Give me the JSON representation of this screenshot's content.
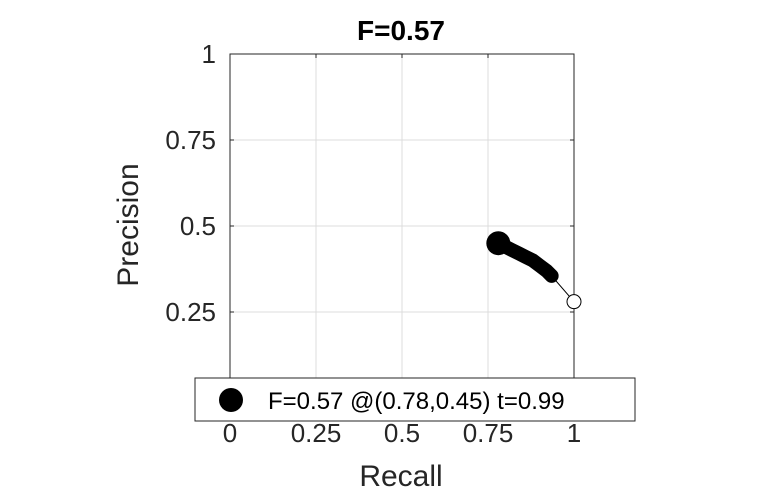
{
  "chart_data": {
    "type": "line",
    "title": "F=0.57",
    "xlabel": "Recall",
    "ylabel": "Precision",
    "xlim": [
      0,
      1
    ],
    "ylim": [
      0,
      1
    ],
    "xticks": [
      0,
      0.25,
      0.5,
      0.75,
      1
    ],
    "xtick_labels": [
      "0",
      "0.25",
      "0.5",
      "0.75",
      "1"
    ],
    "yticks": [
      0.25,
      0.5,
      0.75,
      1
    ],
    "ytick_labels": [
      "0.25",
      "0.5",
      "0.75",
      "1"
    ],
    "grid": true,
    "legend_position": "bottom",
    "series": [
      {
        "name": "F=0.57 @(0.78,0.45) t=0.99",
        "x": [
          0.78,
          0.8,
          0.82,
          0.84,
          0.86,
          0.88,
          0.9,
          0.92,
          0.935,
          1.0
        ],
        "y": [
          0.45,
          0.44,
          0.43,
          0.42,
          0.41,
          0.4,
          0.385,
          0.37,
          0.355,
          0.28
        ],
        "color": "#000000"
      }
    ],
    "best_point": {
      "x": 0.78,
      "y": 0.45
    },
    "end_point": {
      "x": 1.0,
      "y": 0.28
    }
  }
}
